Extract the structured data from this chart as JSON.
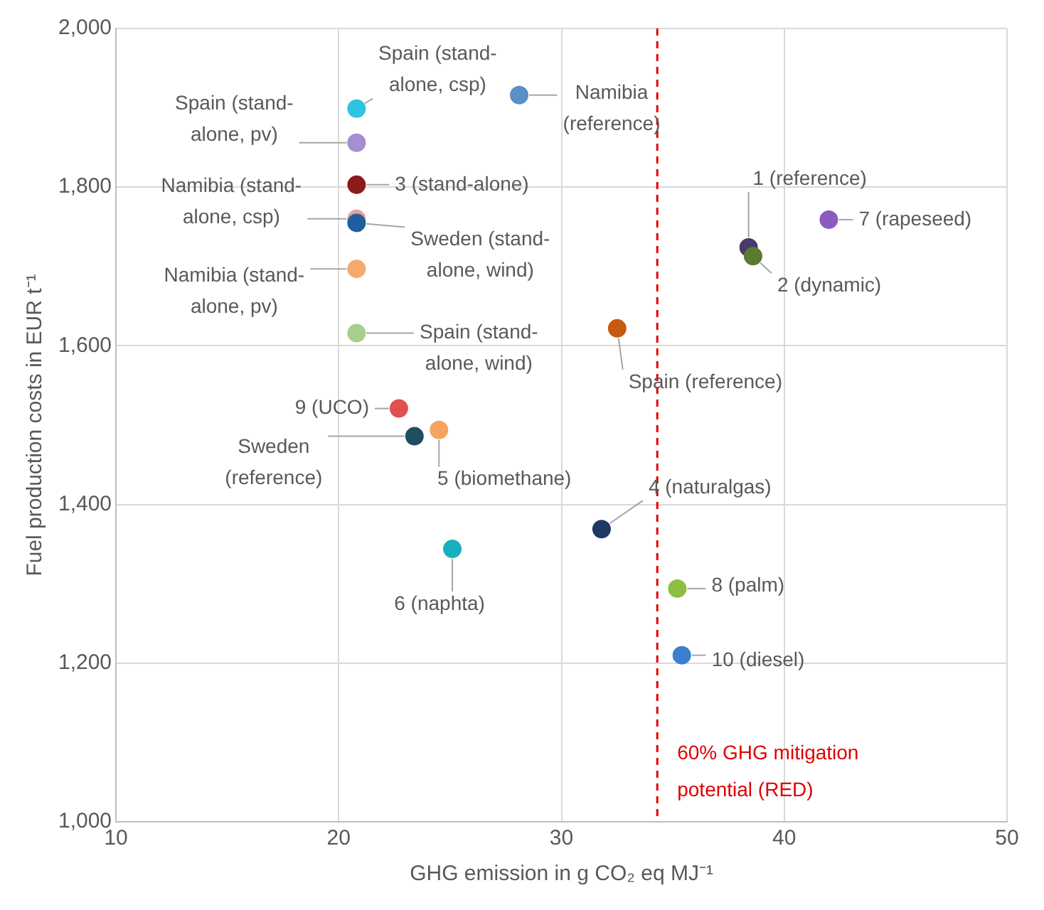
{
  "chart_data": {
    "type": "scatter",
    "xlabel": "GHG emission in g CO₂ eq MJ⁻¹",
    "ylabel": "Fuel production costs in EUR t⁻¹",
    "xlim": [
      10,
      50
    ],
    "xticks": [
      10,
      20,
      30,
      40,
      50
    ],
    "ylim": [
      1000,
      2000
    ],
    "yticks": [
      {
        "value": 1000,
        "label": "1,000"
      },
      {
        "value": 1200,
        "label": "1,200"
      },
      {
        "value": 1400,
        "label": "1,400"
      },
      {
        "value": 1600,
        "label": "1,600"
      },
      {
        "value": 1800,
        "label": "1,800"
      },
      {
        "value": 2000,
        "label": "2,000"
      }
    ],
    "grid": true,
    "legend": false,
    "marker": "circle",
    "series": [
      {
        "name": "Spain (stand-alone, csp)",
        "color": "#2ec4e0",
        "x": [
          20.8
        ],
        "values": [
          1899
        ]
      },
      {
        "name": "Spain (stand-alone, pv)",
        "color": "#a68ed0",
        "x": [
          20.8
        ],
        "values": [
          1856
        ]
      },
      {
        "name": "3 (stand-alone)",
        "color": "#8b1a1a",
        "x": [
          20.8
        ],
        "values": [
          1803
        ]
      },
      {
        "name": "Namibia (stand-alone, csp)",
        "color": "#e8a0a0",
        "x": [
          20.8
        ],
        "values": [
          1760
        ]
      },
      {
        "name": "Sweden (stand-alone, wind)",
        "color": "#1f5f9f",
        "x": [
          20.8
        ],
        "values": [
          1755
        ]
      },
      {
        "name": "Namibia (stand-alone, pv)",
        "color": "#f7a86b",
        "x": [
          20.8
        ],
        "values": [
          1697
        ]
      },
      {
        "name": "Spain (stand-alone, wind)",
        "color": "#a8d08d",
        "x": [
          20.8
        ],
        "values": [
          1616
        ]
      },
      {
        "name": "Namibia (reference)",
        "color": "#5b8fc7",
        "x": [
          28.1
        ],
        "values": [
          1916
        ]
      },
      {
        "name": "1 (reference)",
        "color": "#4a3a6b",
        "x": [
          38.4
        ],
        "values": [
          1724
        ]
      },
      {
        "name": "2 (dynamic)",
        "color": "#5a7a30",
        "x": [
          38.6
        ],
        "values": [
          1713
        ]
      },
      {
        "name": "7 (rapeseed)",
        "color": "#8a5cc0",
        "x": [
          42.0
        ],
        "values": [
          1759
        ]
      },
      {
        "name": "Spain (reference)",
        "color": "#c55a11",
        "x": [
          32.5
        ],
        "values": [
          1622
        ]
      },
      {
        "name": "9 (UCO)",
        "color": "#e05050",
        "x": [
          22.7
        ],
        "values": [
          1521
        ]
      },
      {
        "name": "Sweden (reference)",
        "color": "#1f4e5f",
        "x": [
          23.4
        ],
        "values": [
          1486
        ]
      },
      {
        "name": "5 (biomethane)",
        "color": "#f4a460",
        "x": [
          24.5
        ],
        "values": [
          1494
        ]
      },
      {
        "name": "4 (naturalgas)",
        "color": "#1f3864",
        "x": [
          31.8
        ],
        "values": [
          1369
        ]
      },
      {
        "name": "6 (naphta)",
        "color": "#17b0c0",
        "x": [
          25.1
        ],
        "values": [
          1344
        ]
      },
      {
        "name": "8 (palm)",
        "color": "#8fbf3f",
        "x": [
          35.2
        ],
        "values": [
          1294
        ]
      },
      {
        "name": "10 (diesel)",
        "color": "#3a7fd0",
        "x": [
          35.4
        ],
        "values": [
          1210
        ]
      }
    ],
    "ref_lines": [
      {
        "axis": "x",
        "value": 34.3,
        "label": "60% GHG mitigation potential (RED)",
        "color": "#e00000",
        "line_style": "dashed"
      }
    ]
  }
}
